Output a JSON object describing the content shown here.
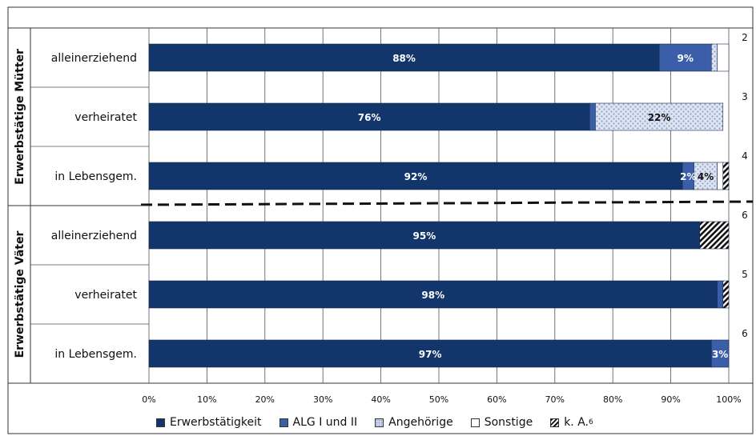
{
  "chart_data": {
    "type": "bar",
    "orientation": "horizontal",
    "stacked": true,
    "groups": [
      {
        "name": "Erwerbstätige Mütter",
        "rows": [
          "alleinerziehend",
          "verheiratet",
          "in Lebensgem."
        ]
      },
      {
        "name": "Erwerbstätige Väter",
        "rows": [
          "alleinerziehend",
          "verheiratet",
          "in Lebensgem."
        ]
      }
    ],
    "categories": [
      "alleinerziehend",
      "verheiratet",
      "in Lebensgem.",
      "alleinerziehend",
      "verheiratet",
      "in Lebensgem."
    ],
    "series": [
      {
        "name": "Erwerbstätigkeit",
        "values": [
          88,
          76,
          92,
          95,
          98,
          97
        ],
        "labels": [
          "88%",
          "76%",
          "92%",
          "95%",
          "98%",
          "97%"
        ]
      },
      {
        "name": "ALG I und II",
        "values": [
          9,
          1,
          2,
          0,
          1,
          3
        ],
        "labels": [
          "9%",
          "",
          "2%",
          "",
          "",
          "3%"
        ]
      },
      {
        "name": "Angehörige",
        "values": [
          1,
          22,
          4,
          0,
          0,
          0
        ],
        "labels": [
          "",
          "22%",
          "4%",
          "",
          "",
          ""
        ]
      },
      {
        "name": "Sonstige",
        "values": [
          2,
          0,
          1,
          0,
          0,
          0
        ],
        "labels": [
          "",
          "",
          "",
          "",
          "",
          ""
        ]
      },
      {
        "name": "k. A.",
        "values": [
          0,
          0,
          1,
          5,
          1,
          0
        ],
        "labels": [
          "",
          "",
          "",
          "",
          "",
          ""
        ]
      }
    ],
    "right_annotations": [
      "2",
      "3",
      "4",
      "6",
      "5",
      "6"
    ],
    "xlim": [
      0,
      100
    ],
    "x_ticks": [
      "0%",
      "10%",
      "20%",
      "30%",
      "40%",
      "50%",
      "60%",
      "70%",
      "80%",
      "90%",
      "100%"
    ],
    "grid": true,
    "legend_position": "bottom"
  },
  "colors": {
    "erwerb": "#12356b",
    "alg": "#3a5ea8",
    "angehoerige": "#d6dff0",
    "sonstige": "#ffffff",
    "ka": "#111111"
  },
  "legend": {
    "items": [
      "Erwerbstätigkeit",
      "ALG I und II",
      "Angehörige",
      "Sonstige"
    ],
    "ka_label": "k. A.",
    "ka_sup": "6"
  }
}
